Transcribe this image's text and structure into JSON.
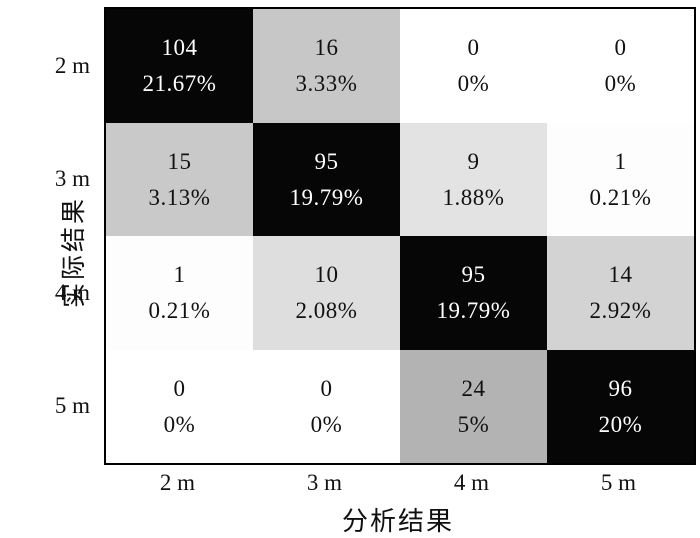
{
  "background_color": "#ffffff",
  "border_color": "#000000",
  "chart_data": {
    "type": "heatmap",
    "subtype": "confusion-matrix",
    "title": "",
    "xlabel": "分析结果",
    "ylabel": "实际结果",
    "x_categories": [
      "2 m",
      "3 m",
      "4 m",
      "5 m"
    ],
    "y_categories": [
      "2 m",
      "3 m",
      "4 m",
      "5 m"
    ],
    "grid": false,
    "legend": "none",
    "cells": [
      [
        {
          "count": "104",
          "percent": "21.67%",
          "bg": "#060606",
          "fg": "#ffffff"
        },
        {
          "count": "16",
          "percent": "3.33%",
          "bg": "#c7c7c7",
          "fg": "#111111"
        },
        {
          "count": "0",
          "percent": "0%",
          "bg": "#ffffff",
          "fg": "#111111"
        },
        {
          "count": "0",
          "percent": "0%",
          "bg": "#ffffff",
          "fg": "#111111"
        }
      ],
      [
        {
          "count": "15",
          "percent": "3.13%",
          "bg": "#c9c9c9",
          "fg": "#111111"
        },
        {
          "count": "95",
          "percent": "19.79%",
          "bg": "#060606",
          "fg": "#ffffff"
        },
        {
          "count": "9",
          "percent": "1.88%",
          "bg": "#e3e3e3",
          "fg": "#111111"
        },
        {
          "count": "1",
          "percent": "0.21%",
          "bg": "#fdfdfd",
          "fg": "#111111"
        }
      ],
      [
        {
          "count": "1",
          "percent": "0.21%",
          "bg": "#fdfdfd",
          "fg": "#111111"
        },
        {
          "count": "10",
          "percent": "2.08%",
          "bg": "#dedede",
          "fg": "#111111"
        },
        {
          "count": "95",
          "percent": "19.79%",
          "bg": "#060606",
          "fg": "#ffffff"
        },
        {
          "count": "14",
          "percent": "2.92%",
          "bg": "#d3d3d3",
          "fg": "#111111"
        }
      ],
      [
        {
          "count": "0",
          "percent": "0%",
          "bg": "#ffffff",
          "fg": "#111111"
        },
        {
          "count": "0",
          "percent": "0%",
          "bg": "#ffffff",
          "fg": "#111111"
        },
        {
          "count": "24",
          "percent": "5%",
          "bg": "#b3b3b3",
          "fg": "#111111"
        },
        {
          "count": "96",
          "percent": "20%",
          "bg": "#060606",
          "fg": "#ffffff"
        }
      ]
    ]
  }
}
